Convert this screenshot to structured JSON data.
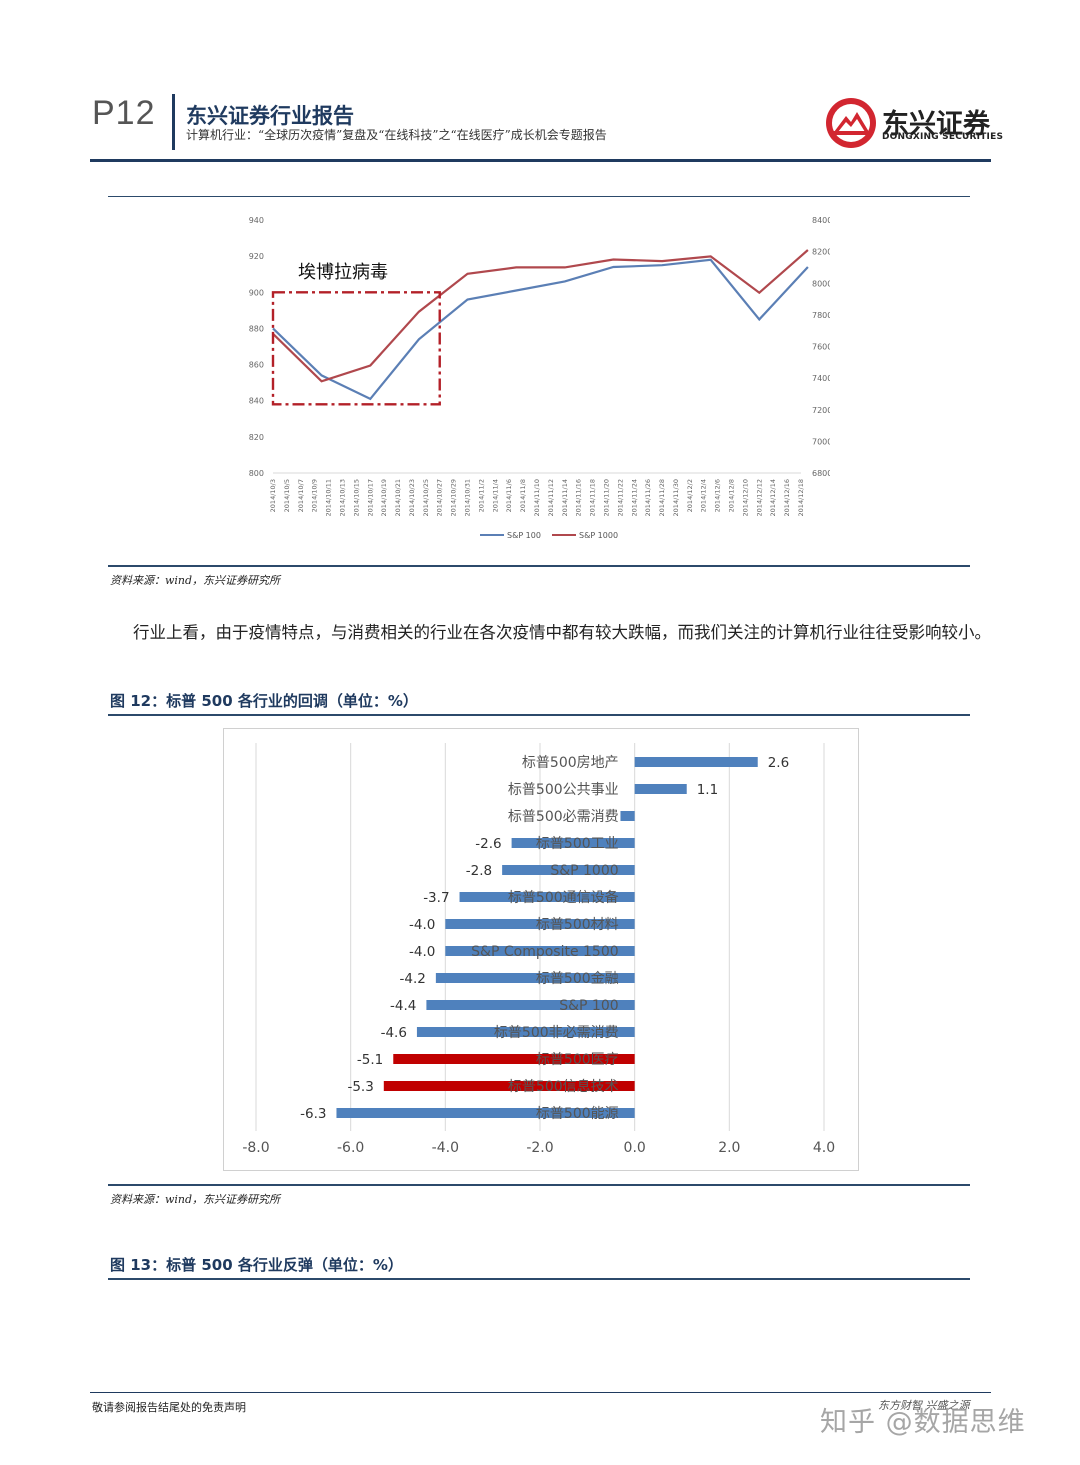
{
  "header": {
    "page_number": "P12",
    "report_title": "东兴证券行业报告",
    "report_subtitle": "计算机行业：“全球历次疫情”复盘及“在线科技”之“在线医疗”成长机会专题报告",
    "logo_cn": "东兴证券",
    "logo_en": "DONGXING SECURITIES",
    "brand_color": "#d22630",
    "rule_color": "#1f3a5f"
  },
  "figure_top": {
    "annotation": "埃博拉病毒",
    "source": "资料来源：wind，东兴证券研究所",
    "chart_data": {
      "type": "line",
      "x": [
        "2014/10/3",
        "2014/10/5",
        "2014/10/7",
        "2014/10/9",
        "2014/10/11",
        "2014/10/13",
        "2014/10/15",
        "2014/10/17",
        "2014/10/19",
        "2014/10/21",
        "2014/10/23",
        "2014/10/25",
        "2014/10/27",
        "2014/10/29",
        "2014/10/31",
        "2014/11/2",
        "2014/11/4",
        "2014/11/6",
        "2014/11/8",
        "2014/11/10",
        "2014/11/12",
        "2014/11/14",
        "2014/11/16",
        "2014/11/18",
        "2014/11/20",
        "2014/11/22",
        "2014/11/24",
        "2014/11/26",
        "2014/11/28",
        "2014/11/30",
        "2014/12/2",
        "2014/12/4",
        "2014/12/6",
        "2014/12/8",
        "2014/12/10",
        "2014/12/12",
        "2014/12/14",
        "2014/12/16",
        "2014/12/18"
      ],
      "series": [
        {
          "name": "S&P 100",
          "axis": "left",
          "color": "#5b7fb5",
          "points": [
            [
              "2014/10/3",
              880
            ],
            [
              "2014/10/10",
              854
            ],
            [
              "2014/10/17",
              841
            ],
            [
              "2014/10/24",
              874
            ],
            [
              "2014/10/31",
              896
            ],
            [
              "2014/11/7",
              901
            ],
            [
              "2014/11/14",
              906
            ],
            [
              "2014/11/21",
              914
            ],
            [
              "2014/11/28",
              915
            ],
            [
              "2014/12/5",
              918
            ],
            [
              "2014/12/12",
              885
            ],
            [
              "2014/12/19",
              914
            ]
          ]
        },
        {
          "name": "S&P 1000",
          "axis": "right",
          "color": "#b0484d",
          "points": [
            [
              "2014/10/3",
              7680
            ],
            [
              "2014/10/10",
              7380
            ],
            [
              "2014/10/17",
              7480
            ],
            [
              "2014/10/24",
              7820
            ],
            [
              "2014/10/31",
              8060
            ],
            [
              "2014/11/7",
              8100
            ],
            [
              "2014/11/14",
              8100
            ],
            [
              "2014/11/21",
              8150
            ],
            [
              "2014/11/28",
              8140
            ],
            [
              "2014/12/5",
              8170
            ],
            [
              "2014/12/12",
              7940
            ],
            [
              "2014/12/19",
              8210
            ]
          ]
        }
      ],
      "y_left": {
        "min": 800,
        "max": 940,
        "ticks": [
          800,
          820,
          840,
          860,
          880,
          900,
          920,
          940
        ]
      },
      "y_right": {
        "min": 6800,
        "max": 8400,
        "ticks": [
          6800,
          7000,
          7200,
          7400,
          7600,
          7800,
          8000,
          8200,
          8400
        ]
      },
      "highlight_range": [
        "2014/10/3",
        "2014/10/27"
      ],
      "highlight_y": [
        838,
        900
      ],
      "legend_position": "bottom",
      "grid": false
    }
  },
  "paragraph": "行业上看，由于疫情特点，与消费相关的行业在各次疫情中都有较大跌幅，而我们关注的计算机行业往往受影响较小。",
  "figure12": {
    "title": "图 12：标普 500 各行业的回调（单位：%）",
    "source": "资料来源：wind，东兴证券研究所",
    "chart_data": {
      "type": "bar",
      "orientation": "horizontal",
      "categories": [
        "标普500房地产",
        "标普500公共事业",
        "标普500必需消费",
        "标普500工业",
        "S&P 1000",
        "标普500通信设备",
        "标普500材料",
        "S&P Composite 1500",
        "标普500金融",
        "S&P 100",
        "标普500非必需消费",
        "标普500医疗",
        "标普500信息技术",
        "标普500能源"
      ],
      "values": [
        2.6,
        1.1,
        -0.3,
        -2.6,
        -2.8,
        -3.7,
        -4.0,
        -4.0,
        -4.2,
        -4.4,
        -4.6,
        -5.1,
        -5.3,
        -6.3
      ],
      "value_labels": [
        "2.6",
        "1.1",
        "",
        "-2.6",
        "-2.8",
        "-3.7",
        "-4.0",
        "-4.0",
        "-4.2",
        "-4.4",
        "-4.6",
        "-5.1",
        "-5.3",
        "-6.3"
      ],
      "highlight": [
        false,
        false,
        false,
        false,
        false,
        false,
        false,
        false,
        false,
        false,
        false,
        true,
        true,
        false
      ],
      "bar_color": "#4f81bd",
      "highlight_color": "#c00000",
      "xlim": [
        -8.0,
        4.0
      ],
      "x_ticks": [
        "-8.0",
        "-6.0",
        "-4.0",
        "-2.0",
        "0.0",
        "2.0",
        "4.0"
      ],
      "grid": true
    }
  },
  "figure13": {
    "title": "图 13：标普 500 各行业反弹（单位：%）"
  },
  "footer": {
    "disclaimer": "敬请参阅报告结尾处的免责声明",
    "slogan": "东方财智 兴盛之源",
    "watermark": "知乎 @数据思维"
  }
}
